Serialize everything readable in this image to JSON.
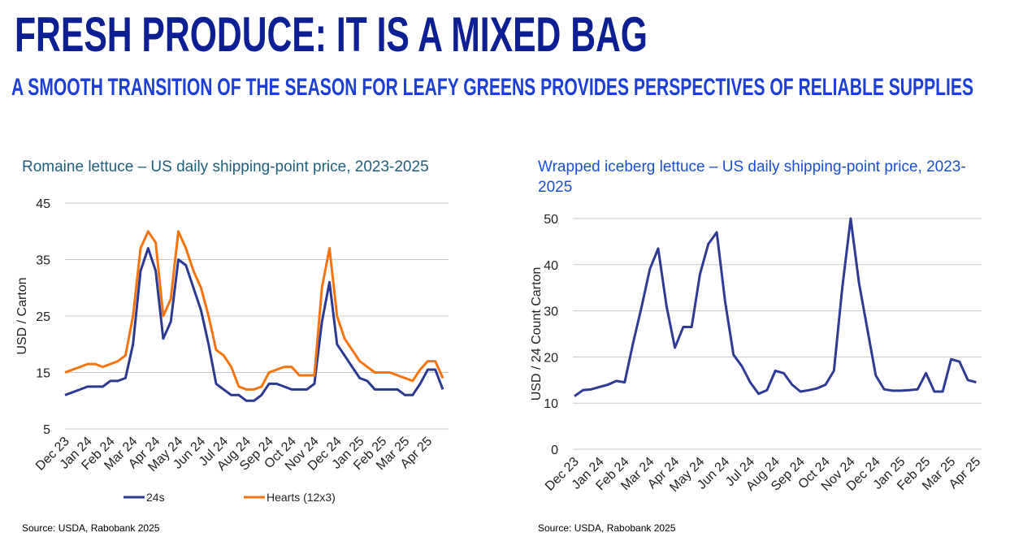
{
  "header": {
    "title": "FRESH PRODUCE: IT IS A MIXED BAG",
    "subtitle": "A SMOOTH TRANSITION OF THE SEASON FOR LEAFY GREENS PROVIDES PERSPECTIVES OF RELIABLE SUPPLIES"
  },
  "chart_data": [
    {
      "type": "line",
      "title": "Romaine lettuce – US daily shipping-point price, 2023-2025",
      "y_label": "USD / Carton",
      "source": "Source: USDA, Rabobank 2025",
      "categories": [
        "Dec 23",
        null,
        null,
        "Jan 24",
        null,
        null,
        "Feb 24",
        null,
        null,
        "Mar 24",
        null,
        null,
        "Apr 24",
        null,
        null,
        "May 24",
        null,
        null,
        "Jun 24",
        null,
        null,
        "Jul 24",
        null,
        null,
        "Aug 24",
        null,
        null,
        "Sep 24",
        null,
        null,
        "Oct 24",
        null,
        null,
        "Nov 24",
        null,
        null,
        "Dec 24",
        null,
        null,
        "Jan 25",
        null,
        null,
        "Feb 25",
        null,
        null,
        "Mar 25",
        null,
        null,
        "Apr 25",
        null,
        null
      ],
      "series": [
        {
          "name": "24s",
          "color": "#2b3990",
          "values": [
            11,
            11.5,
            12,
            12.5,
            12.5,
            12.5,
            13.5,
            13.5,
            14,
            20,
            33,
            37,
            33,
            21,
            24,
            35,
            34,
            30,
            26,
            20,
            13,
            12,
            11,
            11,
            10,
            10,
            11,
            13,
            13,
            12.5,
            12,
            12,
            12,
            13,
            24,
            31,
            20,
            18,
            16,
            14,
            13.5,
            12,
            12,
            12,
            12,
            11,
            11,
            13,
            15.5,
            15.5,
            12
          ]
        },
        {
          "name": "Hearts (12x3)",
          "color": "#f7730e",
          "values": [
            15,
            15.5,
            16,
            16.5,
            16.5,
            16,
            16.5,
            17,
            18,
            25,
            37,
            40,
            38,
            25,
            28,
            40,
            37,
            33,
            30,
            25,
            19,
            18,
            16,
            12.5,
            12,
            12,
            12.5,
            15,
            15.5,
            16,
            16,
            14.5,
            14.5,
            14.5,
            30,
            37,
            25,
            21,
            19,
            17,
            16,
            15,
            15,
            15,
            14.5,
            14,
            13.5,
            15.5,
            17,
            17,
            14
          ]
        }
      ],
      "ylim": [
        5,
        45
      ],
      "yticks": [
        5,
        15,
        25,
        35,
        45
      ],
      "grid": true,
      "legend": "bottom"
    },
    {
      "type": "line",
      "title": "Wrapped iceberg lettuce – US daily shipping-point price, 2023-2025",
      "y_label": "USD / 24 Count Carton",
      "source": "Source: USDA, Rabobank 2025",
      "categories": [
        "Dec 23",
        null,
        null,
        "Jan 24",
        null,
        null,
        "Feb 24",
        null,
        null,
        "Mar 24",
        null,
        null,
        "Apr 24",
        null,
        null,
        "May 24",
        null,
        null,
        "Jun 24",
        null,
        null,
        "Jul 24",
        null,
        null,
        "Aug 24",
        null,
        null,
        "Sep 24",
        null,
        null,
        "Oct 24",
        null,
        null,
        "Nov 24",
        null,
        null,
        "Dec 24",
        null,
        null,
        "Jan 25",
        null,
        null,
        "Feb 25",
        null,
        null,
        "Mar 25",
        null,
        null,
        "Apr 25"
      ],
      "series": [
        {
          "color": "#2e3a94",
          "values": [
            11.5,
            12.8,
            13,
            13.5,
            14,
            14.8,
            14.5,
            23,
            30.7,
            39,
            43.5,
            31,
            22,
            26.5,
            26.5,
            38,
            44.5,
            47,
            32,
            20.5,
            18,
            14.5,
            12,
            12.8,
            17,
            16.5,
            14,
            12.5,
            12.8,
            13.2,
            14,
            17,
            35,
            50,
            36,
            26,
            16,
            13,
            12.7,
            12.7,
            12.8,
            13,
            16.5,
            12.5,
            12.5,
            19.5,
            19,
            15,
            14.5
          ]
        }
      ],
      "ylim": [
        0,
        50
      ],
      "yticks": [
        0,
        10,
        20,
        30,
        40,
        50
      ],
      "grid": true
    }
  ]
}
